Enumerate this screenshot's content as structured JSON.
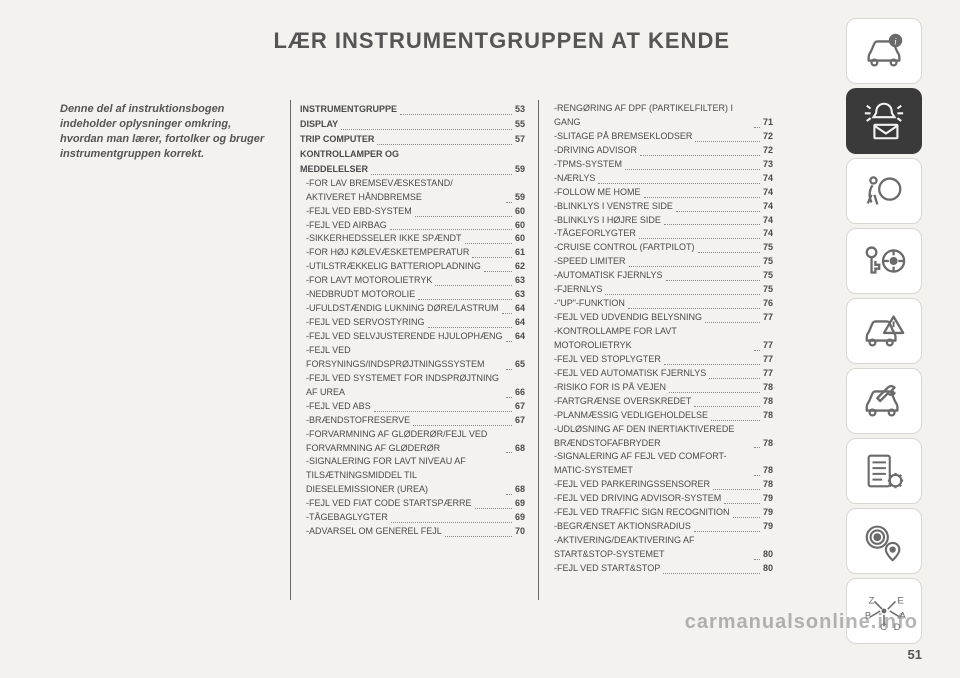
{
  "colors": {
    "page_bg": "#f3f2ee",
    "text": "#4a4a4a",
    "divider": "#666666",
    "tile_inactive_bg": "#ffffff",
    "tile_inactive_stroke": "#6a6a6a",
    "tile_active_bg": "#3a3a3a",
    "tile_active_fg": "#f2f2f2"
  },
  "header": "LÆR INSTRUMENTGRUPPEN AT KENDE",
  "intro": "Denne del af instruktionsbogen indeholder oplysninger omkring, hvordan man lærer, fortolker og bruger instrumentgruppen korrekt.",
  "page_number": "51",
  "watermark": "carmanualsonline.info",
  "col1": [
    {
      "t": "section",
      "label": "INSTRUMENTGRUPPE",
      "pg": "53"
    },
    {
      "t": "section",
      "label": "DISPLAY",
      "pg": "55"
    },
    {
      "t": "section",
      "label": "TRIP COMPUTER",
      "pg": "57"
    },
    {
      "t": "grouphead",
      "label": "KONTROLLAMPER OG"
    },
    {
      "t": "section",
      "label": "MEDDELELSER",
      "pg": "59"
    },
    {
      "t": "sub",
      "label": "FOR LAV BREMSEVÆSKESTAND/ AKTIVERET HÅNDBREMSE",
      "pg": "59"
    },
    {
      "t": "sub",
      "label": "FEJL VED EBD-SYSTEM",
      "pg": "60"
    },
    {
      "t": "sub",
      "label": "FEJL VED AIRBAG",
      "pg": "60"
    },
    {
      "t": "sub",
      "label": "SIKKERHEDSSELER IKKE SPÆNDT",
      "pg": "60"
    },
    {
      "t": "sub",
      "label": "FOR HØJ KØLEVÆSKETEMPERATUR",
      "pg": "61"
    },
    {
      "t": "sub",
      "label": "UTILSTRÆKKELIG BATTERIOPLADNING",
      "pg": "62"
    },
    {
      "t": "sub",
      "label": "FOR LAVT MOTOROLIETRYK",
      "pg": "63"
    },
    {
      "t": "sub",
      "label": "NEDBRUDT MOTOROLIE",
      "pg": "63"
    },
    {
      "t": "sub",
      "label": "UFULDSTÆNDIG LUKNING DØRE/LASTRUM",
      "pg": "64"
    },
    {
      "t": "sub",
      "label": "FEJL VED SERVOSTYRING",
      "pg": "64"
    },
    {
      "t": "sub",
      "label": "FEJL VED SELVJUSTERENDE HJULOPHÆNG",
      "pg": "64"
    },
    {
      "t": "sub",
      "label": "FEJL VED FORSYNINGS/INDSPRØJTNINGSSYSTEM",
      "pg": "65"
    },
    {
      "t": "sub",
      "label": "FEJL VED SYSTEMET FOR INDSPRØJTNING AF UREA",
      "pg": "66"
    },
    {
      "t": "sub",
      "label": "FEJL VED ABS",
      "pg": "67"
    },
    {
      "t": "sub",
      "label": "BRÆNDSTOFRESERVE",
      "pg": "67"
    },
    {
      "t": "sub",
      "label": "FORVARMNING AF GLØDERØR/FEJL VED FORVARMNING AF GLØDERØR",
      "pg": "68"
    },
    {
      "t": "sub",
      "label": "SIGNALERING FOR LAVT NIVEAU AF TILSÆTNINGSMIDDEL TIL DIESELEMISSIONER (UREA)",
      "pg": "68"
    },
    {
      "t": "sub",
      "label": "FEJL VED FIAT CODE STARTSPÆRRE",
      "pg": "69"
    },
    {
      "t": "sub",
      "label": "TÅGEBAGLYGTER",
      "pg": "69"
    },
    {
      "t": "sub",
      "label": "ADVARSEL OM GENEREL FEJL",
      "pg": "70"
    }
  ],
  "col2": [
    {
      "t": "sub",
      "label": "RENGØRING AF DPF (PARTIKELFILTER) I GANG",
      "pg": "71"
    },
    {
      "t": "sub",
      "label": "SLITAGE PÅ BREMSEKLODSER",
      "pg": "72"
    },
    {
      "t": "sub",
      "label": "DRIVING ADVISOR",
      "pg": "72"
    },
    {
      "t": "sub",
      "label": "TPMS-SYSTEM",
      "pg": "73"
    },
    {
      "t": "sub",
      "label": "NÆRLYS",
      "pg": "74"
    },
    {
      "t": "sub",
      "label": "FOLLOW ME HOME",
      "pg": "74"
    },
    {
      "t": "sub",
      "label": "BLINKLYS I VENSTRE SIDE",
      "pg": "74"
    },
    {
      "t": "sub",
      "label": "BLINKLYS I HØJRE SIDE",
      "pg": "74"
    },
    {
      "t": "sub",
      "label": "TÅGEFORLYGTER",
      "pg": "74"
    },
    {
      "t": "sub",
      "label": "CRUISE CONTROL (FARTPILOT)",
      "pg": "75"
    },
    {
      "t": "sub",
      "label": "SPEED LIMITER",
      "pg": "75"
    },
    {
      "t": "sub",
      "label": "AUTOMATISK FJERNLYS",
      "pg": "75"
    },
    {
      "t": "sub",
      "label": "FJERNLYS",
      "pg": "75"
    },
    {
      "t": "sub",
      "label": "\"UP\"-FUNKTION",
      "pg": "76"
    },
    {
      "t": "sub",
      "label": "FEJL VED UDVENDIG BELYSNING",
      "pg": "77"
    },
    {
      "t": "sub",
      "label": "KONTROLLAMPE FOR LAVT MOTOROLIETRYK",
      "pg": "77"
    },
    {
      "t": "sub",
      "label": "FEJL VED STOPLYGTER",
      "pg": "77"
    },
    {
      "t": "sub",
      "label": "FEJL VED AUTOMATISK FJERNLYS",
      "pg": "77"
    },
    {
      "t": "sub",
      "label": "RISIKO FOR IS PÅ VEJEN",
      "pg": "78"
    },
    {
      "t": "sub",
      "label": "FARTGRÆNSE OVERSKREDET",
      "pg": "78"
    },
    {
      "t": "sub",
      "label": "PLANMÆSSIG VEDLIGEHOLDELSE",
      "pg": "78"
    },
    {
      "t": "sub",
      "label": "UDLØSNING AF DEN INERTIAKTIVEREDE BRÆNDSTOFAFBRYDER",
      "pg": "78"
    },
    {
      "t": "sub",
      "label": "SIGNALERING AF FEJL VED COMFORT-MATIC-SYSTEMET",
      "pg": "78"
    },
    {
      "t": "sub",
      "label": "FEJL VED PARKERINGSSENSORER",
      "pg": "78"
    },
    {
      "t": "sub",
      "label": "FEJL VED DRIVING ADVISOR-SYSTEM",
      "pg": "79"
    },
    {
      "t": "sub",
      "label": "FEJL VED TRAFFIC SIGN RECOGNITION",
      "pg": "79"
    },
    {
      "t": "sub",
      "label": "BEGRÆNSET AKTIONSRADIUS",
      "pg": "79"
    },
    {
      "t": "sub",
      "label": "AKTIVERING/DEAKTIVERING AF START&STOP-SYSTEMET",
      "pg": "80"
    },
    {
      "t": "sub",
      "label": "FEJL VED START&STOP",
      "pg": "80"
    }
  ],
  "rail": [
    {
      "name": "car-info-icon",
      "active": false
    },
    {
      "name": "light-mail-icon",
      "active": true
    },
    {
      "name": "airbag-icon",
      "active": false
    },
    {
      "name": "key-wheel-icon",
      "active": false
    },
    {
      "name": "car-warning-icon",
      "active": false
    },
    {
      "name": "car-wrench-icon",
      "active": false
    },
    {
      "name": "checklist-gear-icon",
      "active": false
    },
    {
      "name": "radio-nav-icon",
      "active": false
    },
    {
      "name": "abc-index-icon",
      "active": false
    }
  ]
}
